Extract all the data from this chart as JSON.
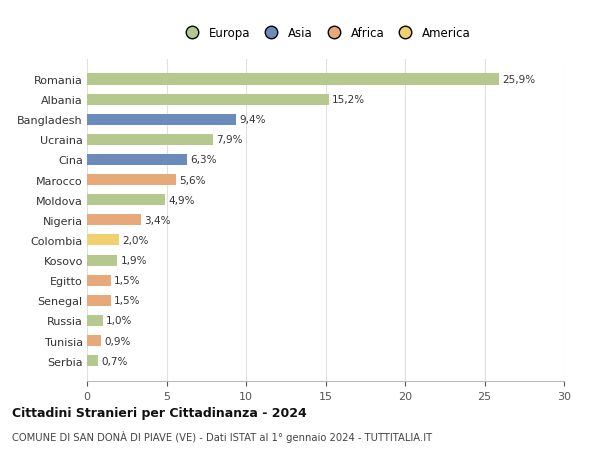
{
  "categories": [
    "Romania",
    "Albania",
    "Bangladesh",
    "Ucraina",
    "Cina",
    "Marocco",
    "Moldova",
    "Nigeria",
    "Colombia",
    "Kosovo",
    "Egitto",
    "Senegal",
    "Russia",
    "Tunisia",
    "Serbia"
  ],
  "values": [
    25.9,
    15.2,
    9.4,
    7.9,
    6.3,
    5.6,
    4.9,
    3.4,
    2.0,
    1.9,
    1.5,
    1.5,
    1.0,
    0.9,
    0.7
  ],
  "labels": [
    "25,9%",
    "15,2%",
    "9,4%",
    "7,9%",
    "6,3%",
    "5,6%",
    "4,9%",
    "3,4%",
    "2,0%",
    "1,9%",
    "1,5%",
    "1,5%",
    "1,0%",
    "0,9%",
    "0,7%"
  ],
  "colors": [
    "#b5c98e",
    "#b5c98e",
    "#6b8cba",
    "#b5c98e",
    "#6b8cba",
    "#e8a97a",
    "#b5c98e",
    "#e8a97a",
    "#f0d070",
    "#b5c98e",
    "#e8a97a",
    "#e8a97a",
    "#b5c98e",
    "#e8a97a",
    "#b5c98e"
  ],
  "continent_colors": {
    "Europa": "#b5c98e",
    "Asia": "#6b8cba",
    "Africa": "#e8a97a",
    "America": "#f0d070"
  },
  "xlim": [
    0,
    30
  ],
  "xticks": [
    0,
    5,
    10,
    15,
    20,
    25,
    30
  ],
  "title": "Cittadini Stranieri per Cittadinanza - 2024",
  "subtitle": "COMUNE DI SAN DONÀ DI PIAVE (VE) - Dati ISTAT al 1° gennaio 2024 - TUTTITALIA.IT",
  "background_color": "#ffffff",
  "grid_color": "#e0e0e0"
}
